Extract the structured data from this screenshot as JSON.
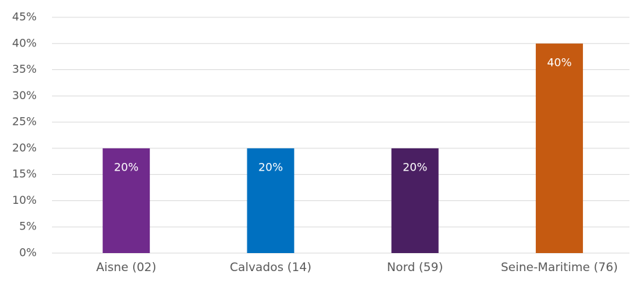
{
  "chart_data": {
    "type": "bar",
    "categories": [
      "Aisne (02)",
      "Calvados (14)",
      "Nord (59)",
      "Seine-Maritime (76)"
    ],
    "values": [
      20,
      20,
      20,
      40
    ],
    "value_labels": [
      "20%",
      "20%",
      "20%",
      "40%"
    ],
    "colors": [
      "#702a8c",
      "#0070c0",
      "#4a1f62",
      "#c55a11"
    ],
    "ylim": [
      0,
      45
    ],
    "yticks": [
      {
        "value": 0,
        "label": "0%"
      },
      {
        "value": 5,
        "label": "5%"
      },
      {
        "value": 10,
        "label": "10%"
      },
      {
        "value": 15,
        "label": "15%"
      },
      {
        "value": 20,
        "label": "20%"
      },
      {
        "value": 25,
        "label": "25%"
      },
      {
        "value": 30,
        "label": "30%"
      },
      {
        "value": 35,
        "label": "35%"
      },
      {
        "value": 40,
        "label": "40%"
      },
      {
        "value": 45,
        "label": "45%"
      }
    ],
    "grid": true
  }
}
